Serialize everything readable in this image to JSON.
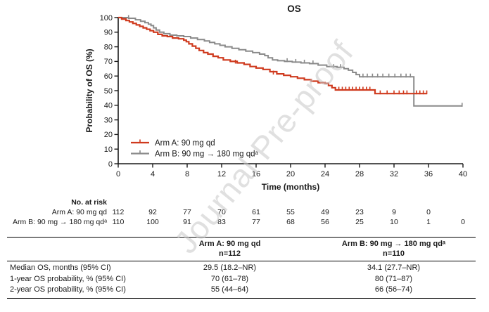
{
  "figure": {
    "watermark": "Journal Pre-proof"
  },
  "chart_data": {
    "type": "line",
    "subtype": "kaplan-meier-step",
    "title": "OS",
    "xlabel": "Time (months)",
    "ylabel": "Probability of OS (%)",
    "xlim": [
      0,
      40
    ],
    "ylim": [
      0,
      100
    ],
    "xticks": [
      0,
      4,
      8,
      12,
      16,
      20,
      24,
      28,
      32,
      36,
      40
    ],
    "yticks": [
      0,
      10,
      20,
      30,
      40,
      50,
      60,
      70,
      80,
      90,
      100
    ],
    "grid": false,
    "legend_position": "inside-bottom-left",
    "series": [
      {
        "name": "Arm A: 90 mg qd",
        "color": "#cf3a1e",
        "step_points": [
          [
            0,
            100
          ],
          [
            0.4,
            99
          ],
          [
            0.9,
            98
          ],
          [
            1.3,
            97
          ],
          [
            1.7,
            96
          ],
          [
            2.1,
            95
          ],
          [
            2.5,
            94
          ],
          [
            2.9,
            93
          ],
          [
            3.3,
            92
          ],
          [
            3.7,
            91
          ],
          [
            4.1,
            90
          ],
          [
            4.6,
            88.5
          ],
          [
            5.1,
            87.5
          ],
          [
            5.7,
            87
          ],
          [
            6.3,
            86
          ],
          [
            7,
            85.5
          ],
          [
            7.6,
            84.5
          ],
          [
            7.9,
            83.5
          ],
          [
            8.2,
            82
          ],
          [
            8.6,
            80.5
          ],
          [
            9,
            79
          ],
          [
            9.4,
            77.5
          ],
          [
            9.9,
            76
          ],
          [
            10.4,
            75
          ],
          [
            11,
            73.5
          ],
          [
            11.6,
            72.5
          ],
          [
            12.2,
            71
          ],
          [
            13,
            70
          ],
          [
            13.8,
            69
          ],
          [
            14.6,
            68
          ],
          [
            15.3,
            66.5
          ],
          [
            16,
            65.5
          ],
          [
            16.8,
            64.5
          ],
          [
            17.6,
            63
          ],
          [
            18.4,
            61.5
          ],
          [
            19.2,
            60.5
          ],
          [
            20,
            59.5
          ],
          [
            20.8,
            58.5
          ],
          [
            21.6,
            57.5
          ],
          [
            22.4,
            56.5
          ],
          [
            23.2,
            55.5
          ],
          [
            24,
            55
          ],
          [
            24.4,
            53.5
          ],
          [
            24.8,
            52
          ],
          [
            25.2,
            50.5
          ],
          [
            29.8,
            48
          ],
          [
            35.8,
            48
          ]
        ],
        "censor_marks": [
          [
            13.6,
            69
          ],
          [
            18,
            61.5
          ],
          [
            25.6,
            50.5
          ],
          [
            26,
            50.5
          ],
          [
            26.4,
            50.5
          ],
          [
            26.8,
            50.5
          ],
          [
            27.2,
            50.5
          ],
          [
            27.6,
            50.5
          ],
          [
            28,
            50.5
          ],
          [
            28.4,
            50.5
          ],
          [
            28.8,
            50.5
          ],
          [
            29.2,
            50.5
          ],
          [
            30.4,
            48
          ],
          [
            31.2,
            48
          ],
          [
            32,
            48
          ],
          [
            32.6,
            48
          ],
          [
            33.1,
            48
          ],
          [
            33.5,
            48
          ],
          [
            34.6,
            48
          ],
          [
            35,
            48
          ],
          [
            35.4,
            48
          ],
          [
            35.8,
            48
          ]
        ]
      },
      {
        "name": "Arm B: 90 mg → 180 mg qdᵃ",
        "color": "#8a8a8a",
        "step_points": [
          [
            0,
            100
          ],
          [
            1.2,
            99.5
          ],
          [
            2,
            98.5
          ],
          [
            2.6,
            97.5
          ],
          [
            3.1,
            96.5
          ],
          [
            3.5,
            95.5
          ],
          [
            3.8,
            94.5
          ],
          [
            4.1,
            93
          ],
          [
            4.4,
            91.5
          ],
          [
            4.8,
            90
          ],
          [
            5.3,
            89
          ],
          [
            6,
            88
          ],
          [
            6.8,
            87.5
          ],
          [
            7.6,
            87
          ],
          [
            8.4,
            86
          ],
          [
            9.2,
            85
          ],
          [
            10,
            84
          ],
          [
            10.6,
            83
          ],
          [
            11.2,
            82
          ],
          [
            11.8,
            81
          ],
          [
            12.4,
            80
          ],
          [
            13.2,
            79
          ],
          [
            14,
            78
          ],
          [
            14.8,
            77
          ],
          [
            15.6,
            76
          ],
          [
            16.4,
            75
          ],
          [
            17,
            74
          ],
          [
            17.4,
            72.5
          ],
          [
            17.9,
            71
          ],
          [
            18.5,
            70.5
          ],
          [
            19.3,
            70
          ],
          [
            20.2,
            69.5
          ],
          [
            21.2,
            69
          ],
          [
            22.2,
            68.5
          ],
          [
            23.2,
            67.5
          ],
          [
            24.2,
            66.5
          ],
          [
            25.4,
            66
          ],
          [
            26.2,
            65
          ],
          [
            26.7,
            64
          ],
          [
            27.2,
            62.5
          ],
          [
            27.6,
            61
          ],
          [
            28,
            59.5
          ],
          [
            34.3,
            39.5
          ],
          [
            39.9,
            39.5
          ]
        ],
        "censor_marks": [
          [
            1.2,
            99.5
          ],
          [
            19.6,
            70
          ],
          [
            20.6,
            69.5
          ],
          [
            21.6,
            69
          ],
          [
            22.6,
            68.5
          ],
          [
            25,
            66
          ],
          [
            25.8,
            66
          ],
          [
            28.4,
            59.5
          ],
          [
            28.9,
            59.5
          ],
          [
            29.5,
            59.5
          ],
          [
            30.1,
            59.5
          ],
          [
            30.7,
            59.5
          ],
          [
            31.4,
            59.5
          ],
          [
            32.1,
            59.5
          ],
          [
            32.8,
            59.5
          ],
          [
            33.4,
            59.5
          ],
          [
            33.9,
            59.5
          ],
          [
            39.9,
            39.5
          ]
        ]
      }
    ]
  },
  "at_risk": {
    "header": "No. at risk",
    "times": [
      0,
      4,
      8,
      12,
      16,
      20,
      24,
      28,
      32,
      36,
      40
    ],
    "groups": [
      {
        "label": "Arm A: 90 mg qd",
        "counts": [
          112,
          92,
          77,
          70,
          61,
          55,
          49,
          23,
          9,
          0
        ]
      },
      {
        "label": "Arm B: 90 mg → 180 mg qdᵃ",
        "counts": [
          110,
          100,
          91,
          83,
          77,
          68,
          56,
          25,
          10,
          1,
          0
        ]
      }
    ]
  },
  "summary_table": {
    "columns": [
      {
        "title": "Arm A: 90 mg qd",
        "n": "n=112"
      },
      {
        "title": "Arm B: 90 mg → 180 mg qdᵃ",
        "n": "n=110"
      }
    ],
    "rows": [
      {
        "label": "Median OS, months (95% CI)",
        "arm_a": "29.5 (18.2–NR)",
        "arm_b": "34.1 (27.7–NR)"
      },
      {
        "label": "1-year OS probability, % (95% CI)",
        "arm_a": "70 (61–78)",
        "arm_b": "80 (71–87)"
      },
      {
        "label": "2-year OS probability, % (95% CI)",
        "arm_a": "55 (44–64)",
        "arm_b": "66 (56–74)"
      }
    ]
  },
  "colors": {
    "arm_a": "#cf3a1e",
    "arm_b": "#8a8a8a",
    "axis": "#1a1a1a",
    "watermark": "#c7c7c7"
  }
}
